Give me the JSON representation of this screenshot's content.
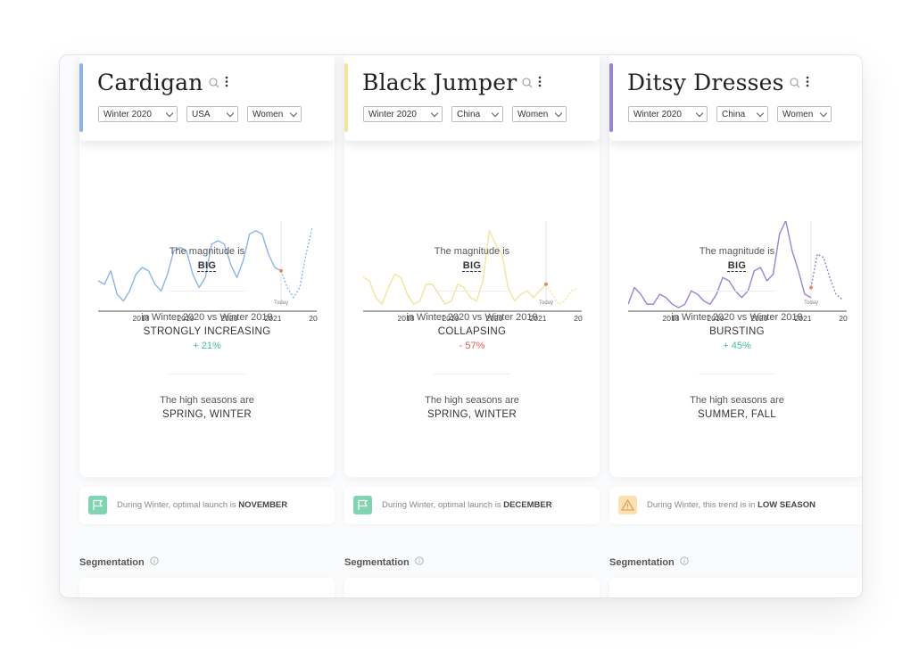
{
  "colors": {
    "blue": "#8ab4ea",
    "yellow": "#f3e49d",
    "purple": "#9a82d6",
    "positive": "#3fc491",
    "negative": "#ee5c56"
  },
  "labels": {
    "magnitude": "The magnitude is",
    "high_seasons": "The high seasons are",
    "segmentation": "Segmentation",
    "today": "Today"
  },
  "cards": [
    {
      "title": "Cardigan",
      "accent": "blue",
      "filters": {
        "season": "Winter 2020",
        "region": "USA",
        "gender": "Women"
      },
      "chart_data": {
        "type": "line",
        "x_ticks": [
          "2018",
          "2019",
          "2020",
          "2021",
          "20"
        ],
        "series": [
          {
            "values": [
              0.4,
              0.35,
              0.55,
              0.2,
              0.1,
              0.25,
              0.5,
              0.6,
              0.55,
              0.35,
              0.25,
              0.5,
              0.85,
              0.9,
              0.85,
              0.5,
              0.3,
              0.45,
              0.95,
              1.0,
              0.95,
              0.65,
              0.45,
              0.7,
              1.1,
              1.15,
              1.1,
              0.8,
              0.6,
              0.55
            ],
            "forecast": [
              0.55,
              0.3,
              0.15,
              0.3,
              0.8,
              1.2
            ]
          }
        ]
      },
      "magnitude": "BIG",
      "comparison_label": "in Winter 2020 vs Winter 2019",
      "trend": "STRONGLY INCREASING",
      "change": "+ 21%",
      "change_sign": "pos",
      "seasons": "SPRING, WINTER",
      "launch_prefix": "During Winter, optimal launch is",
      "launch_value": "NOVEMBER",
      "launch_icon": "flag-icon"
    },
    {
      "title": "Black Jumper",
      "accent": "yellow",
      "filters": {
        "season": "Winter 2020",
        "region": "China",
        "gender": "Women"
      },
      "chart_data": {
        "type": "line",
        "x_ticks": [
          "2018",
          "2019",
          "2020",
          "2021",
          "20"
        ],
        "series": [
          {
            "values": [
              0.45,
              0.4,
              0.15,
              0.05,
              0.3,
              0.5,
              0.45,
              0.2,
              0.05,
              0.1,
              0.35,
              0.35,
              0.2,
              0.05,
              0.1,
              0.35,
              0.3,
              0.15,
              0.1,
              0.4,
              1.15,
              0.95,
              0.8,
              0.3,
              0.1,
              0.2,
              0.25,
              0.15,
              0.25,
              0.35
            ],
            "forecast": [
              0.35,
              0.2,
              0.05,
              0.1,
              0.25,
              0.28
            ]
          }
        ]
      },
      "magnitude": "BIG",
      "comparison_label": "in Winter 2020 vs Winter 2019",
      "trend": "COLLAPSING",
      "change": "- 57%",
      "change_sign": "neg",
      "seasons": "SPRING, WINTER",
      "launch_prefix": "During Winter, optimal launch is",
      "launch_value": "DECEMBER",
      "launch_icon": "flag-icon"
    },
    {
      "title": "Ditsy Dresses",
      "accent": "purple",
      "filters": {
        "season": "Winter 2020",
        "region": "China",
        "gender": "Women"
      },
      "chart_data": {
        "type": "line",
        "x_ticks": [
          "2018",
          "2019",
          "2020",
          "2021",
          "20"
        ],
        "series": [
          {
            "values": [
              0.05,
              0.3,
              0.2,
              0.05,
              0.05,
              0.2,
              0.15,
              0.05,
              0.0,
              0.05,
              0.25,
              0.2,
              0.1,
              0.05,
              0.2,
              0.45,
              0.4,
              0.25,
              0.15,
              0.25,
              0.55,
              0.6,
              0.4,
              0.5,
              1.1,
              1.3,
              0.85,
              0.55,
              0.2,
              0.15
            ],
            "forecast": [
              0.3,
              0.8,
              0.75,
              0.45,
              0.2,
              0.12
            ]
          }
        ]
      },
      "magnitude": "BIG",
      "comparison_label": "in Winter 2020 vs Winter 2019",
      "trend": "BURSTING",
      "change": "+ 45%",
      "change_sign": "pos",
      "seasons": "SUMMER, FALL",
      "launch_prefix": "During Winter, this trend is in",
      "launch_value": "LOW SEASON",
      "launch_icon": "warning-icon"
    }
  ]
}
